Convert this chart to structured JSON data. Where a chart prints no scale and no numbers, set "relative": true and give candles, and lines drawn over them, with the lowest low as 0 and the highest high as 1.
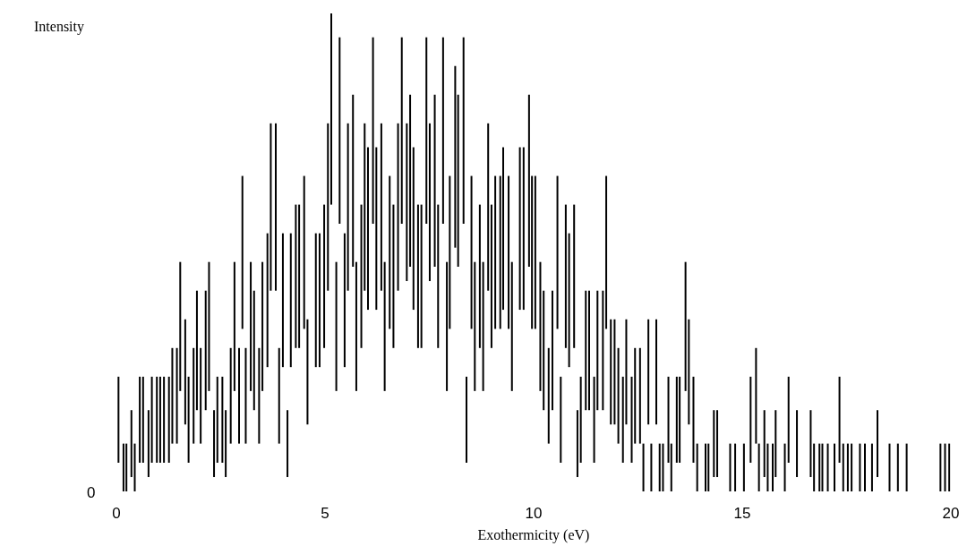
{
  "chart_data": {
    "type": "candlestick",
    "relative": true,
    "color": "#000000",
    "xlabel": "Exothermicity (eV)",
    "annotations": [
      "Intensity",
      "0"
    ],
    "xlim": [
      0,
      20
    ],
    "xticks": [
      0,
      5,
      10,
      15,
      20
    ],
    "x": [
      0.05,
      0.17,
      0.24,
      0.36,
      0.44,
      0.56,
      0.64,
      0.77,
      0.85,
      0.97,
      1.05,
      1.14,
      1.26,
      1.34,
      1.45,
      1.53,
      1.65,
      1.73,
      1.85,
      1.93,
      2.02,
      2.14,
      2.22,
      2.34,
      2.42,
      2.54,
      2.62,
      2.74,
      2.83,
      2.94,
      3.02,
      3.1,
      3.22,
      3.3,
      3.42,
      3.5,
      3.62,
      3.7,
      3.82,
      3.9,
      3.99,
      4.1,
      4.18,
      4.3,
      4.38,
      4.5,
      4.58,
      4.78,
      4.87,
      4.98,
      5.07,
      5.15,
      5.27,
      5.35,
      5.47,
      5.55,
      5.67,
      5.75,
      5.87,
      5.95,
      6.03,
      6.15,
      6.23,
      6.35,
      6.43,
      6.55,
      6.64,
      6.75,
      6.84,
      6.96,
      7.04,
      7.12,
      7.23,
      7.31,
      7.43,
      7.51,
      7.63,
      7.71,
      7.83,
      7.92,
      7.99,
      8.12,
      8.19,
      8.32,
      8.39,
      8.51,
      8.59,
      8.71,
      8.79,
      8.91,
      8.99,
      9.08,
      9.2,
      9.27,
      9.4,
      9.48,
      9.67,
      9.76,
      9.89,
      9.96,
      10.04,
      10.16,
      10.24,
      10.36,
      10.45,
      10.57,
      10.65,
      10.77,
      10.85,
      10.97,
      11.05,
      11.13,
      11.25,
      11.33,
      11.45,
      11.53,
      11.66,
      11.74,
      11.85,
      11.94,
      12.03,
      12.14,
      12.22,
      12.35,
      12.43,
      12.55,
      12.63,
      12.75,
      12.82,
      12.94,
      13.02,
      13.1,
      13.23,
      13.3,
      13.43,
      13.5,
      13.64,
      13.72,
      13.83,
      13.92,
      14.12,
      14.19,
      14.32,
      14.4,
      14.71,
      14.83,
      15.04,
      15.2,
      15.33,
      15.4,
      15.53,
      15.61,
      15.73,
      15.8,
      16.02,
      16.11,
      16.31,
      16.64,
      16.72,
      16.85,
      16.92,
      17.05,
      17.21,
      17.33,
      17.42,
      17.53,
      17.62,
      17.82,
      17.94,
      18.11,
      18.24,
      18.53,
      18.73,
      18.94,
      19.75,
      19.86,
      19.96
    ],
    "ohlc": [
      [
        0.06,
        0.24,
        0.06,
        0.24
      ],
      [
        0,
        0.1,
        0,
        0.1
      ],
      [
        0,
        0.1,
        0,
        0.1
      ],
      [
        0.03,
        0.17,
        0.03,
        0.17
      ],
      [
        0,
        0.1,
        0,
        0.1
      ],
      [
        0.06,
        0.24,
        0.06,
        0.24
      ],
      [
        0.06,
        0.24,
        0.06,
        0.24
      ],
      [
        0.03,
        0.17,
        0.03,
        0.17
      ],
      [
        0.06,
        0.24,
        0.06,
        0.24
      ],
      [
        0.06,
        0.24,
        0.06,
        0.24
      ],
      [
        0.06,
        0.24,
        0.06,
        0.24
      ],
      [
        0.06,
        0.24,
        0.06,
        0.24
      ],
      [
        0.06,
        0.24,
        0.06,
        0.24
      ],
      [
        0.1,
        0.3,
        0.1,
        0.3
      ],
      [
        0.1,
        0.3,
        0.1,
        0.3
      ],
      [
        0.21,
        0.48,
        0.21,
        0.48
      ],
      [
        0.14,
        0.36,
        0.14,
        0.36
      ],
      [
        0.06,
        0.24,
        0.06,
        0.24
      ],
      [
        0.1,
        0.3,
        0.1,
        0.3
      ],
      [
        0.17,
        0.42,
        0.17,
        0.42
      ],
      [
        0.1,
        0.3,
        0.1,
        0.3
      ],
      [
        0.17,
        0.42,
        0.17,
        0.42
      ],
      [
        0.21,
        0.48,
        0.21,
        0.48
      ],
      [
        0.03,
        0.17,
        0.03,
        0.17
      ],
      [
        0.06,
        0.24,
        0.06,
        0.24
      ],
      [
        0.06,
        0.24,
        0.06,
        0.24
      ],
      [
        0.03,
        0.17,
        0.03,
        0.17
      ],
      [
        0.1,
        0.3,
        0.1,
        0.3
      ],
      [
        0.21,
        0.48,
        0.21,
        0.48
      ],
      [
        0.1,
        0.3,
        0.1,
        0.3
      ],
      [
        0.34,
        0.66,
        0.34,
        0.66
      ],
      [
        0.1,
        0.3,
        0.1,
        0.3
      ],
      [
        0.21,
        0.48,
        0.21,
        0.48
      ],
      [
        0.17,
        0.42,
        0.17,
        0.42
      ],
      [
        0.1,
        0.3,
        0.1,
        0.3
      ],
      [
        0.21,
        0.48,
        0.21,
        0.48
      ],
      [
        0.26,
        0.54,
        0.26,
        0.54
      ],
      [
        0.42,
        0.77,
        0.42,
        0.77
      ],
      [
        0.42,
        0.77,
        0.42,
        0.77
      ],
      [
        0.1,
        0.3,
        0.1,
        0.3
      ],
      [
        0.26,
        0.54,
        0.26,
        0.54
      ],
      [
        0.03,
        0.17,
        0.03,
        0.17
      ],
      [
        0.26,
        0.54,
        0.26,
        0.54
      ],
      [
        0.3,
        0.6,
        0.3,
        0.6
      ],
      [
        0.3,
        0.6,
        0.3,
        0.6
      ],
      [
        0.34,
        0.66,
        0.34,
        0.66
      ],
      [
        0.14,
        0.36,
        0.14,
        0.36
      ],
      [
        0.26,
        0.54,
        0.26,
        0.54
      ],
      [
        0.26,
        0.54,
        0.26,
        0.54
      ],
      [
        0.3,
        0.6,
        0.3,
        0.6
      ],
      [
        0.42,
        0.77,
        0.42,
        0.77
      ],
      [
        0.6,
        1,
        0.6,
        1
      ],
      [
        0.21,
        0.48,
        0.21,
        0.48
      ],
      [
        0.56,
        0.95,
        0.56,
        0.95
      ],
      [
        0.26,
        0.54,
        0.26,
        0.54
      ],
      [
        0.42,
        0.77,
        0.42,
        0.77
      ],
      [
        0.47,
        0.83,
        0.47,
        0.83
      ],
      [
        0.21,
        0.48,
        0.21,
        0.48
      ],
      [
        0.3,
        0.6,
        0.3,
        0.6
      ],
      [
        0.42,
        0.77,
        0.42,
        0.77
      ],
      [
        0.38,
        0.72,
        0.38,
        0.72
      ],
      [
        0.56,
        0.95,
        0.56,
        0.95
      ],
      [
        0.38,
        0.72,
        0.38,
        0.72
      ],
      [
        0.42,
        0.77,
        0.42,
        0.77
      ],
      [
        0.21,
        0.48,
        0.21,
        0.48
      ],
      [
        0.34,
        0.66,
        0.34,
        0.66
      ],
      [
        0.3,
        0.6,
        0.3,
        0.6
      ],
      [
        0.42,
        0.77,
        0.42,
        0.77
      ],
      [
        0.56,
        0.95,
        0.56,
        0.95
      ],
      [
        0.44,
        0.77,
        0.44,
        0.77
      ],
      [
        0.47,
        0.83,
        0.47,
        0.83
      ],
      [
        0.38,
        0.72,
        0.38,
        0.72
      ],
      [
        0.3,
        0.6,
        0.3,
        0.6
      ],
      [
        0.3,
        0.6,
        0.3,
        0.6
      ],
      [
        0.56,
        0.95,
        0.56,
        0.95
      ],
      [
        0.44,
        0.77,
        0.44,
        0.77
      ],
      [
        0.47,
        0.83,
        0.47,
        0.83
      ],
      [
        0.3,
        0.6,
        0.3,
        0.6
      ],
      [
        0.56,
        0.95,
        0.56,
        0.95
      ],
      [
        0.21,
        0.48,
        0.21,
        0.48
      ],
      [
        0.34,
        0.66,
        0.34,
        0.66
      ],
      [
        0.51,
        0.89,
        0.51,
        0.89
      ],
      [
        0.47,
        0.83,
        0.47,
        0.83
      ],
      [
        0.56,
        0.95,
        0.56,
        0.95
      ],
      [
        0.06,
        0.24,
        0.06,
        0.24
      ],
      [
        0.34,
        0.66,
        0.34,
        0.66
      ],
      [
        0.21,
        0.48,
        0.21,
        0.48
      ],
      [
        0.3,
        0.6,
        0.3,
        0.6
      ],
      [
        0.21,
        0.48,
        0.21,
        0.48
      ],
      [
        0.42,
        0.77,
        0.42,
        0.77
      ],
      [
        0.3,
        0.6,
        0.3,
        0.6
      ],
      [
        0.34,
        0.66,
        0.34,
        0.66
      ],
      [
        0.34,
        0.66,
        0.34,
        0.66
      ],
      [
        0.38,
        0.72,
        0.38,
        0.72
      ],
      [
        0.34,
        0.66,
        0.34,
        0.66
      ],
      [
        0.21,
        0.48,
        0.21,
        0.48
      ],
      [
        0.38,
        0.72,
        0.38,
        0.72
      ],
      [
        0.38,
        0.72,
        0.38,
        0.72
      ],
      [
        0.47,
        0.83,
        0.47,
        0.83
      ],
      [
        0.34,
        0.66,
        0.34,
        0.66
      ],
      [
        0.34,
        0.66,
        0.34,
        0.66
      ],
      [
        0.21,
        0.48,
        0.21,
        0.48
      ],
      [
        0.17,
        0.42,
        0.17,
        0.42
      ],
      [
        0.1,
        0.3,
        0.1,
        0.3
      ],
      [
        0.17,
        0.42,
        0.17,
        0.42
      ],
      [
        0.34,
        0.66,
        0.34,
        0.66
      ],
      [
        0.06,
        0.24,
        0.06,
        0.24
      ],
      [
        0.3,
        0.6,
        0.3,
        0.6
      ],
      [
        0.26,
        0.54,
        0.26,
        0.54
      ],
      [
        0.3,
        0.6,
        0.3,
        0.6
      ],
      [
        0.03,
        0.17,
        0.03,
        0.17
      ],
      [
        0.06,
        0.24,
        0.06,
        0.24
      ],
      [
        0.17,
        0.42,
        0.17,
        0.42
      ],
      [
        0.17,
        0.42,
        0.17,
        0.42
      ],
      [
        0.06,
        0.24,
        0.06,
        0.24
      ],
      [
        0.17,
        0.42,
        0.17,
        0.42
      ],
      [
        0.17,
        0.42,
        0.17,
        0.42
      ],
      [
        0.34,
        0.66,
        0.34,
        0.66
      ],
      [
        0.14,
        0.36,
        0.14,
        0.36
      ],
      [
        0.14,
        0.36,
        0.14,
        0.36
      ],
      [
        0.1,
        0.3,
        0.1,
        0.3
      ],
      [
        0.06,
        0.24,
        0.06,
        0.24
      ],
      [
        0.14,
        0.36,
        0.14,
        0.36
      ],
      [
        0.06,
        0.24,
        0.06,
        0.24
      ],
      [
        0.1,
        0.3,
        0.1,
        0.3
      ],
      [
        0.1,
        0.3,
        0.1,
        0.3
      ],
      [
        0,
        0.1,
        0,
        0.1
      ],
      [
        0.14,
        0.36,
        0.14,
        0.36
      ],
      [
        0,
        0.1,
        0,
        0.1
      ],
      [
        0.14,
        0.36,
        0.14,
        0.36
      ],
      [
        0,
        0.1,
        0,
        0.1
      ],
      [
        0,
        0.1,
        0,
        0.1
      ],
      [
        0.06,
        0.24,
        0.06,
        0.24
      ],
      [
        0,
        0.1,
        0,
        0.1
      ],
      [
        0.06,
        0.24,
        0.06,
        0.24
      ],
      [
        0.06,
        0.24,
        0.06,
        0.24
      ],
      [
        0.21,
        0.48,
        0.21,
        0.48
      ],
      [
        0.14,
        0.36,
        0.14,
        0.36
      ],
      [
        0.06,
        0.24,
        0.06,
        0.24
      ],
      [
        0,
        0.1,
        0,
        0.1
      ],
      [
        0,
        0.1,
        0,
        0.1
      ],
      [
        0,
        0.1,
        0,
        0.1
      ],
      [
        0.03,
        0.17,
        0.03,
        0.17
      ],
      [
        0.03,
        0.17,
        0.03,
        0.17
      ],
      [
        0,
        0.1,
        0,
        0.1
      ],
      [
        0,
        0.1,
        0,
        0.1
      ],
      [
        0,
        0.1,
        0,
        0.1
      ],
      [
        0.06,
        0.24,
        0.06,
        0.24
      ],
      [
        0.1,
        0.3,
        0.1,
        0.3
      ],
      [
        0,
        0.1,
        0,
        0.1
      ],
      [
        0.03,
        0.17,
        0.03,
        0.17
      ],
      [
        0,
        0.1,
        0,
        0.1
      ],
      [
        0,
        0.1,
        0,
        0.1
      ],
      [
        0.03,
        0.17,
        0.03,
        0.17
      ],
      [
        0,
        0.1,
        0,
        0.1
      ],
      [
        0.06,
        0.24,
        0.06,
        0.24
      ],
      [
        0.03,
        0.17,
        0.03,
        0.17
      ],
      [
        0.03,
        0.17,
        0.03,
        0.17
      ],
      [
        0,
        0.1,
        0,
        0.1
      ],
      [
        0,
        0.1,
        0,
        0.1
      ],
      [
        0,
        0.1,
        0,
        0.1
      ],
      [
        0,
        0.1,
        0,
        0.1
      ],
      [
        0,
        0.1,
        0,
        0.1
      ],
      [
        0.06,
        0.24,
        0.06,
        0.24
      ],
      [
        0,
        0.1,
        0,
        0.1
      ],
      [
        0,
        0.1,
        0,
        0.1
      ],
      [
        0,
        0.1,
        0,
        0.1
      ],
      [
        0,
        0.1,
        0,
        0.1
      ],
      [
        0,
        0.1,
        0,
        0.1
      ],
      [
        0,
        0.1,
        0,
        0.1
      ],
      [
        0.03,
        0.17,
        0.03,
        0.17
      ],
      [
        0,
        0.1,
        0,
        0.1
      ],
      [
        0,
        0.1,
        0,
        0.1
      ],
      [
        0,
        0.1,
        0,
        0.1
      ],
      [
        0,
        0.1,
        0,
        0.1
      ],
      [
        0,
        0.1,
        0,
        0.1
      ],
      [
        0,
        0.1,
        0,
        0.1
      ]
    ]
  }
}
